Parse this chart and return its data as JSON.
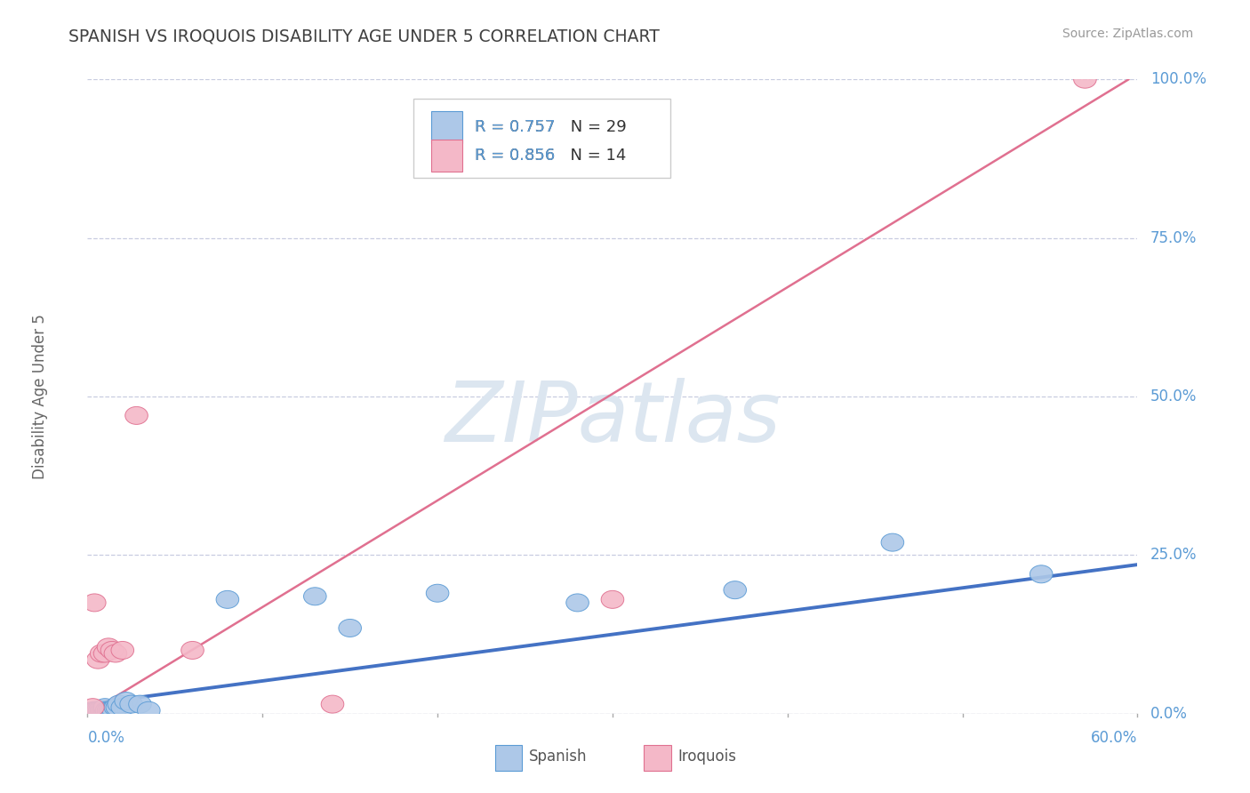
{
  "title": "SPANISH VS IROQUOIS DISABILITY AGE UNDER 5 CORRELATION CHART",
  "source_text": "Source: ZipAtlas.com",
  "ylabel": "Disability Age Under 5",
  "xlim": [
    0.0,
    0.6
  ],
  "ylim": [
    0.0,
    1.0
  ],
  "ytick_labels": [
    "0.0%",
    "25.0%",
    "50.0%",
    "75.0%",
    "100.0%"
  ],
  "ytick_values": [
    0.0,
    0.25,
    0.5,
    0.75,
    1.0
  ],
  "x_tick_positions": [
    0.0,
    0.1,
    0.2,
    0.3,
    0.4,
    0.5,
    0.6
  ],
  "spanish_R": 0.757,
  "spanish_N": 29,
  "iroquois_R": 0.856,
  "iroquois_N": 14,
  "spanish_color": "#adc8e8",
  "spanish_edge_color": "#5b9bd5",
  "iroquois_color": "#f4b8c8",
  "iroquois_edge_color": "#e07090",
  "spanish_line_color": "#4472c4",
  "iroquois_line_color": "#e07090",
  "background_color": "#ffffff",
  "grid_color": "#c8cce0",
  "watermark_color": "#dce6f0",
  "title_color": "#404040",
  "axis_value_color": "#5b9bd5",
  "legend_r_color": "#5b9bd5",
  "legend_n_color": "#333333",
  "source_color": "#999999",
  "ylabel_color": "#666666",
  "spanish_x": [
    0.004,
    0.005,
    0.006,
    0.007,
    0.008,
    0.009,
    0.01,
    0.01,
    0.011,
    0.012,
    0.013,
    0.014,
    0.015,
    0.016,
    0.017,
    0.018,
    0.02,
    0.022,
    0.025,
    0.03,
    0.035,
    0.08,
    0.13,
    0.15,
    0.2,
    0.28,
    0.37,
    0.46,
    0.545
  ],
  "spanish_y": [
    0.005,
    0.005,
    0.005,
    0.005,
    0.005,
    0.005,
    0.005,
    0.01,
    0.005,
    0.005,
    0.005,
    0.005,
    0.005,
    0.01,
    0.01,
    0.015,
    0.01,
    0.02,
    0.015,
    0.015,
    0.005,
    0.18,
    0.185,
    0.135,
    0.19,
    0.175,
    0.195,
    0.27,
    0.22
  ],
  "iroquois_x": [
    0.003,
    0.004,
    0.006,
    0.008,
    0.01,
    0.012,
    0.014,
    0.016,
    0.02,
    0.028,
    0.06,
    0.14,
    0.3,
    0.57
  ],
  "iroquois_y": [
    0.01,
    0.175,
    0.085,
    0.095,
    0.095,
    0.105,
    0.1,
    0.095,
    0.1,
    0.47,
    0.1,
    0.015,
    0.18,
    1.0
  ],
  "spanish_trend_x": [
    0.0,
    0.6
  ],
  "spanish_trend_y": [
    0.015,
    0.235
  ],
  "iroquois_trend_x": [
    0.0,
    0.595
  ],
  "iroquois_trend_y": [
    0.0,
    1.0
  ]
}
